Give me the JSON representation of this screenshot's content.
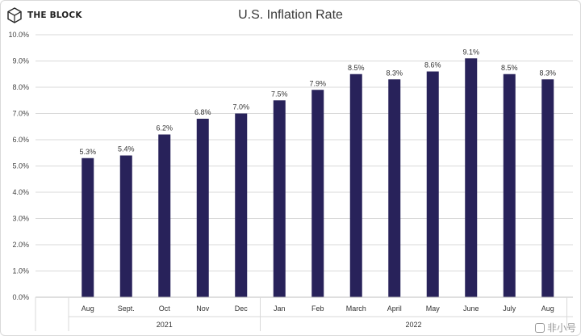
{
  "brand": {
    "name": "THE BLOCK"
  },
  "watermark": {
    "text": "非小号"
  },
  "colors": {
    "bar": "#28225a",
    "grid": "#d9d9d9",
    "axis": "#bfbfbf"
  },
  "chart_data": {
    "type": "bar",
    "title": "U.S. Inflation Rate",
    "xlabel": "",
    "ylabel": "",
    "ylim": [
      0,
      10
    ],
    "yticks": [
      "0.0%",
      "1.0%",
      "2.0%",
      "3.0%",
      "4.0%",
      "5.0%",
      "6.0%",
      "7.0%",
      "8.0%",
      "9.0%",
      "10.0%"
    ],
    "grid": true,
    "categories": [
      "Aug",
      "Sept.",
      "Oct",
      "Nov",
      "Dec",
      "Jan",
      "Feb",
      "March",
      "April",
      "May",
      "June",
      "July",
      "Aug"
    ],
    "values": [
      5.3,
      5.4,
      6.2,
      6.8,
      7.0,
      7.5,
      7.9,
      8.5,
      8.3,
      8.6,
      9.1,
      8.5,
      8.3
    ],
    "data_labels": [
      "5.3%",
      "5.4%",
      "6.2%",
      "6.8%",
      "7.0%",
      "7.5%",
      "7.9%",
      "8.5%",
      "8.3%",
      "8.6%",
      "9.1%",
      "8.5%",
      "8.3%"
    ],
    "groups": [
      {
        "label": "2021",
        "start": 0,
        "end": 4
      },
      {
        "label": "2022",
        "start": 5,
        "end": 12
      }
    ]
  }
}
